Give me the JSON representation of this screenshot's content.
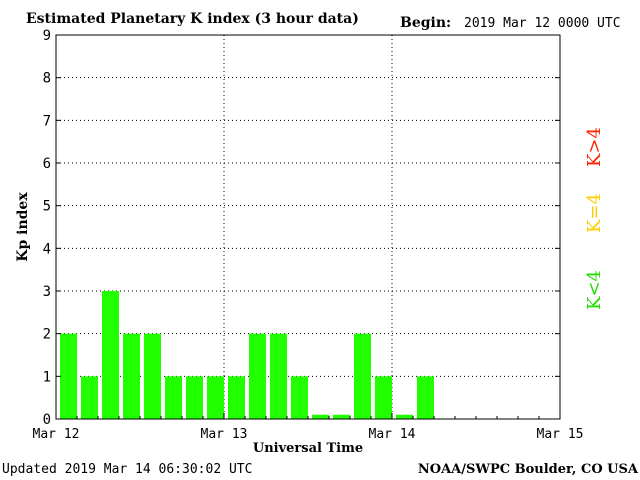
{
  "chart_data": {
    "type": "bar",
    "title": "Estimated Planetary K index (3 hour data)",
    "begin_label": "Begin:",
    "begin_value": "2019 Mar 12 0000 UTC",
    "xlabel": "Universal Time",
    "ylabel": "Kp index",
    "xlim_hours": [
      0,
      72
    ],
    "x_ticks": [
      {
        "label": "Mar 12",
        "hour": 0
      },
      {
        "label": "Mar 13",
        "hour": 24
      },
      {
        "label": "Mar 14",
        "hour": 48
      },
      {
        "label": "Mar 15",
        "hour": 72
      }
    ],
    "ylim": [
      0,
      9
    ],
    "y_ticks": [
      "0",
      "1",
      "2",
      "3",
      "4",
      "5",
      "6",
      "7",
      "8",
      "9"
    ],
    "interval_hours": 3,
    "values": [
      2,
      1,
      3,
      2,
      2,
      1,
      1,
      1,
      1,
      2,
      2,
      1,
      0.1,
      0.1,
      2,
      1,
      0.1,
      1
    ],
    "bar_color": "#22ff00",
    "grid": "dotted",
    "legend": [
      {
        "label": "K<4",
        "color": "#22dd00"
      },
      {
        "label": "K=4",
        "color": "#ffcc00"
      },
      {
        "label": "K>4",
        "color": "#ff2200"
      }
    ],
    "footer_left": "Updated 2019 Mar 14 06:30:02 UTC",
    "footer_right": "NOAA/SWPC Boulder, CO USA"
  }
}
